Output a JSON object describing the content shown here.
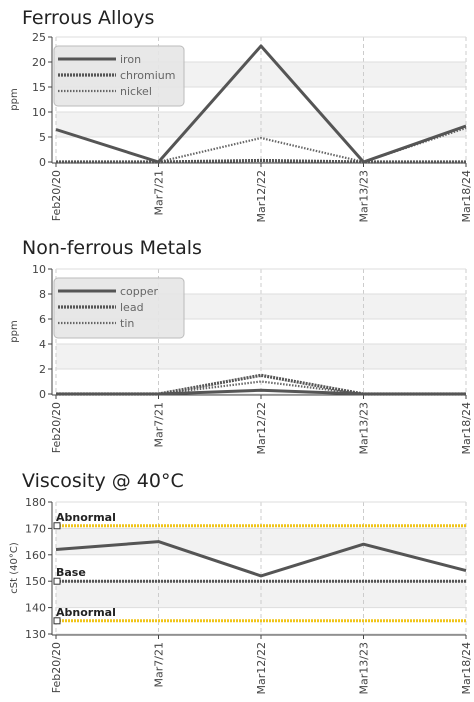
{
  "chart_data": [
    {
      "type": "line",
      "title": "Ferrous Alloys",
      "ylabel": "ppm",
      "categories": [
        "Feb20/20",
        "Mar7/21",
        "Mar12/22",
        "Mar13/23",
        "Mar18/24"
      ],
      "ylim": [
        0,
        25
      ],
      "yticks": [
        0,
        5,
        10,
        15,
        20,
        25
      ],
      "grid": true,
      "legend": "top-left",
      "series": [
        {
          "name": "iron",
          "style": "solid",
          "color": "#555555",
          "values": [
            6.5,
            0,
            23.2,
            0,
            7.2
          ]
        },
        {
          "name": "chromium",
          "style": "dotted",
          "color": "#555555",
          "values": [
            0,
            0,
            0.3,
            0,
            0
          ]
        },
        {
          "name": "nickel",
          "style": "dashed",
          "color": "#666666",
          "values": [
            0,
            0,
            4.8,
            0,
            6.8
          ]
        }
      ]
    },
    {
      "type": "line",
      "title": "Non-ferrous Metals",
      "ylabel": "ppm",
      "categories": [
        "Feb20/20",
        "Mar7/21",
        "Mar12/22",
        "Mar13/23",
        "Mar18/24"
      ],
      "ylim": [
        0,
        10
      ],
      "yticks": [
        0,
        2,
        4,
        6,
        8,
        10
      ],
      "grid": true,
      "legend": "top-left",
      "series": [
        {
          "name": "copper",
          "style": "solid",
          "color": "#555555",
          "values": [
            0,
            0,
            0.3,
            0,
            0
          ]
        },
        {
          "name": "lead",
          "style": "dotted",
          "color": "#555555",
          "values": [
            0,
            0,
            1.5,
            0,
            0
          ]
        },
        {
          "name": "tin",
          "style": "dashed",
          "color": "#666666",
          "values": [
            0,
            0,
            1.0,
            0,
            0
          ]
        }
      ]
    },
    {
      "type": "line",
      "title": "Viscosity @ 40°C",
      "ylabel": "cSt (40°C)",
      "categories": [
        "Feb20/20",
        "Mar7/21",
        "Mar12/22",
        "Mar13/23",
        "Mar18/24"
      ],
      "ylim": [
        130,
        180
      ],
      "yticks": [
        130,
        140,
        150,
        160,
        170,
        180
      ],
      "grid": true,
      "series": [
        {
          "style": "solid",
          "color": "#555555",
          "values": [
            162,
            165,
            152,
            164,
            154
          ]
        }
      ],
      "reference_lines": [
        {
          "label": "Abnormal",
          "value": 171,
          "color": "#f0c419",
          "style": "dotted"
        },
        {
          "label": "Base",
          "value": 150,
          "color": "#555555",
          "style": "dotted"
        },
        {
          "label": "Abnormal",
          "value": 135,
          "color": "#f0c419",
          "style": "dotted"
        }
      ]
    }
  ]
}
